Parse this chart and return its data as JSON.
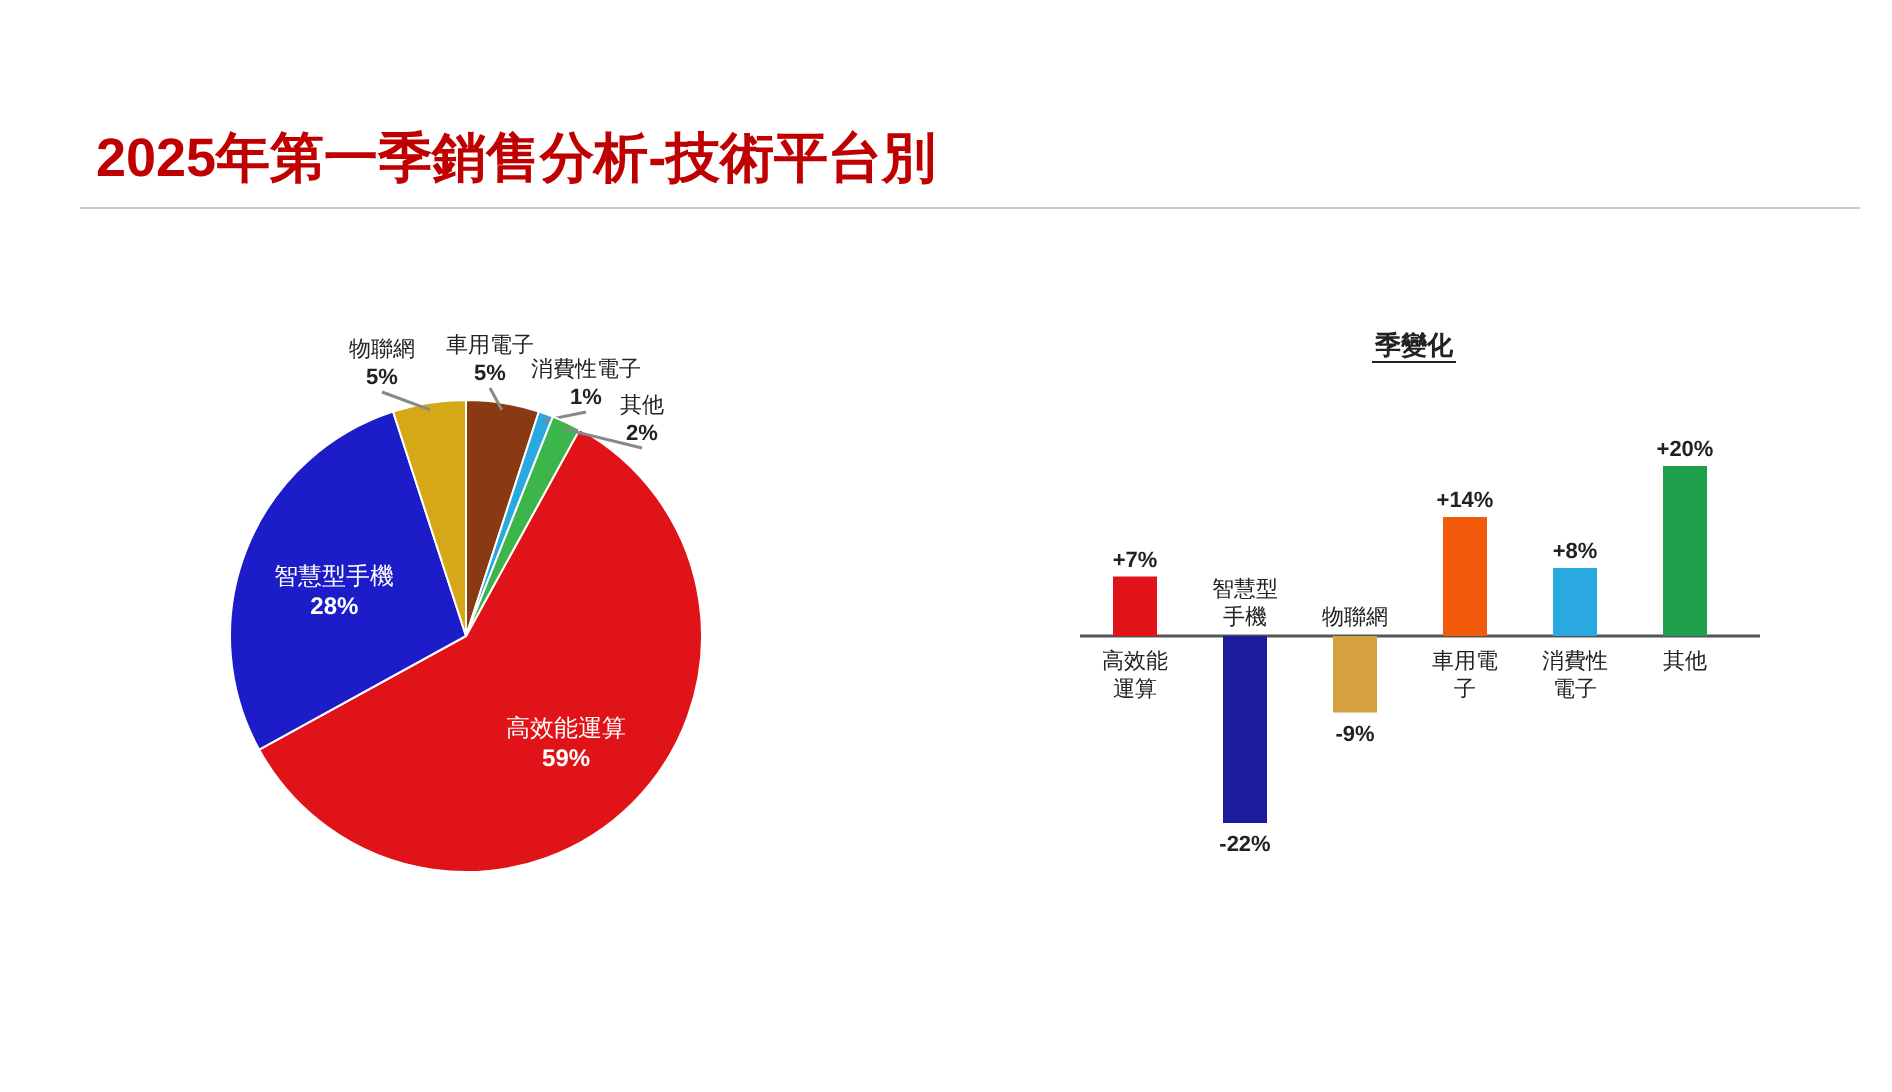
{
  "chart_data": [
    {
      "type": "pie",
      "title": "2025年第一季銷售分析-技術平台別",
      "categories": [
        "高效能運算",
        "智慧型手機",
        "物聯網",
        "車用電子",
        "消費性電子",
        "其他"
      ],
      "values": [
        59,
        28,
        5,
        5,
        1,
        2
      ],
      "value_labels": [
        "59%",
        "28%",
        "5%",
        "5%",
        "1%",
        "2%"
      ],
      "colors": [
        "#e01418",
        "#1c1cc8",
        "#d4a816",
        "#8a3a12",
        "#2aa8e0",
        "#3cb54a"
      ]
    },
    {
      "type": "bar",
      "title": "季變化",
      "categories": [
        "高效能運算",
        "智慧型手機",
        "物聯網",
        "車用電子",
        "消費性電子",
        "其他"
      ],
      "values": [
        7,
        -22,
        -9,
        14,
        8,
        20
      ],
      "value_labels": [
        "+7%",
        "-22%",
        "-9%",
        "+14%",
        "+8%",
        "+20%"
      ],
      "colors": [
        "#e01418",
        "#1c1c9c",
        "#d4a040",
        "#f05a0a",
        "#2aa8e0",
        "#1ea04a"
      ]
    }
  ]
}
